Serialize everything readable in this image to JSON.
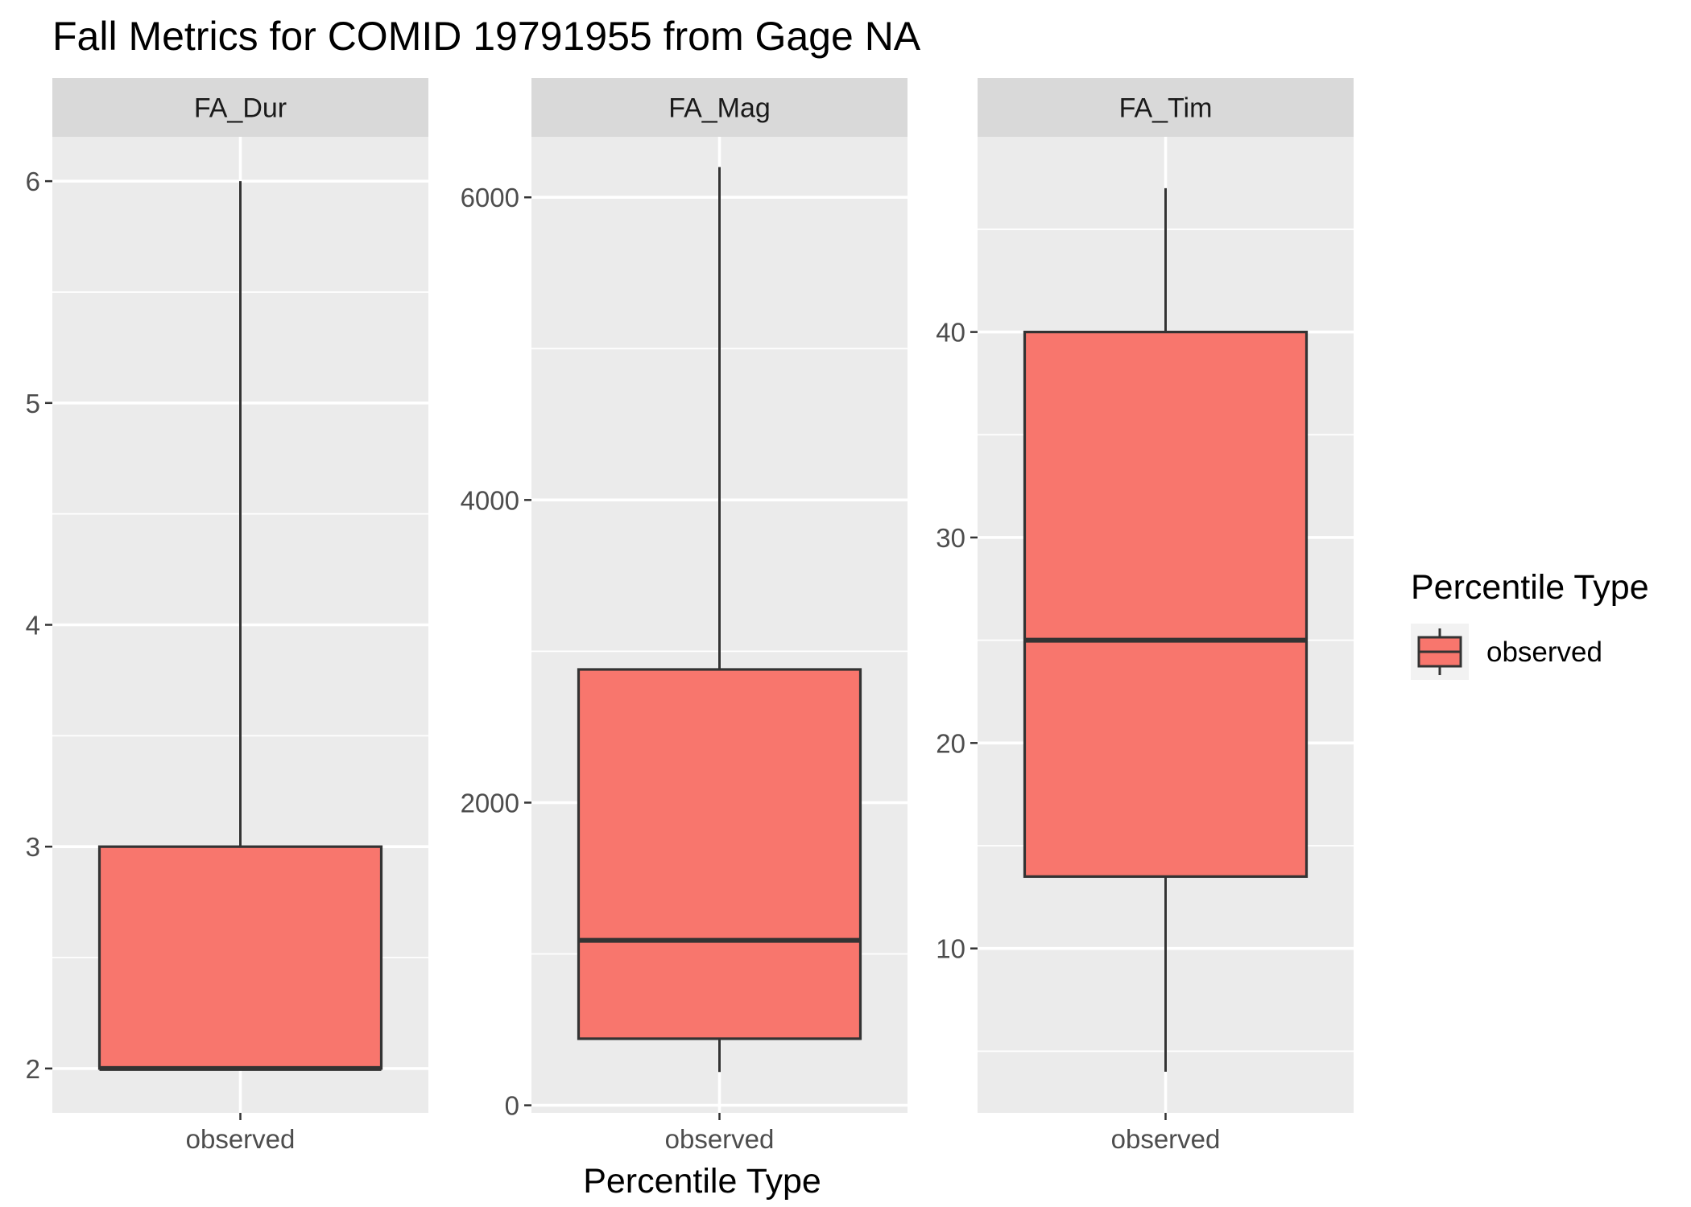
{
  "chart_data": {
    "type": "boxplot",
    "title": "Fall Metrics for COMID 19791955 from Gage NA",
    "xlabel": "Percentile Type",
    "ylabel": "",
    "category": "observed",
    "fill_color": "#F8766D",
    "panel_bg": "#EBEBEB",
    "strip_bg": "#D9D9D9",
    "grid": true,
    "legend": {
      "title": "Percentile Type",
      "position": "right",
      "entries": [
        "observed"
      ]
    },
    "panels": [
      {
        "name": "FA_Dur",
        "ylim": [
          1.8,
          6.2
        ],
        "yticks": [
          2,
          3,
          4,
          5,
          6
        ],
        "box": {
          "min": 2,
          "q1": 2,
          "median": 2,
          "q3": 3,
          "max": 6
        }
      },
      {
        "name": "FA_Mag",
        "ylim": [
          -50,
          6400
        ],
        "yticks": [
          0,
          2000,
          4000,
          6000
        ],
        "box": {
          "min": 220,
          "q1": 440,
          "median": 1090,
          "q3": 2880,
          "max": 6200
        }
      },
      {
        "name": "FA_Tim",
        "ylim": [
          2,
          49.5
        ],
        "yticks": [
          10,
          20,
          30,
          40
        ],
        "box": {
          "min": 4,
          "q1": 13.5,
          "median": 25,
          "q3": 40,
          "max": 47
        }
      }
    ]
  }
}
